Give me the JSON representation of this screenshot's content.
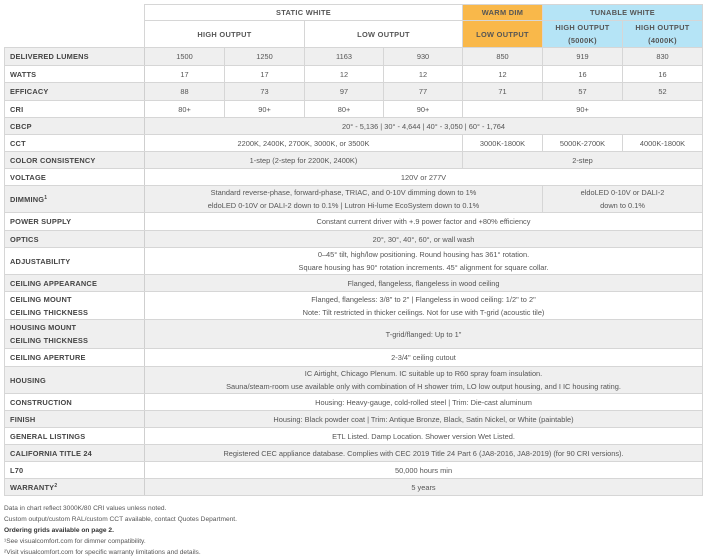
{
  "header": {
    "groups": [
      {
        "label": "STATIC WHITE",
        "span": 4,
        "color": ""
      },
      {
        "label": "WARM DIM",
        "span": 1,
        "color": "#f9b84a"
      },
      {
        "label": "TUNABLE WHITE",
        "span": 2,
        "color": "#b5e4f6"
      }
    ],
    "subgroups": [
      {
        "label": "HIGH OUTPUT",
        "span": 2,
        "color": ""
      },
      {
        "label": "LOW OUTPUT",
        "span": 2,
        "color": ""
      },
      {
        "label": "LOW OUTPUT",
        "span": 1,
        "color": "#f9b84a"
      },
      {
        "label": "HIGH OUTPUT\n(5000K)",
        "span": 1,
        "color": "#b5e4f6"
      },
      {
        "label": "HIGH OUTPUT\n(4000K)",
        "span": 1,
        "color": "#b5e4f6"
      }
    ]
  },
  "rows": [
    {
      "label": "DELIVERED LUMENS",
      "h": 18,
      "cells": [
        {
          "t": "1500",
          "s": 1
        },
        {
          "t": "1250",
          "s": 1
        },
        {
          "t": "1163",
          "s": 1
        },
        {
          "t": "930",
          "s": 1
        },
        {
          "t": "850",
          "s": 1
        },
        {
          "t": "919",
          "s": 1
        },
        {
          "t": "830",
          "s": 1
        }
      ]
    },
    {
      "label": "WATTS",
      "h": 17,
      "cells": [
        {
          "t": "17",
          "s": 1
        },
        {
          "t": "17",
          "s": 1
        },
        {
          "t": "12",
          "s": 1
        },
        {
          "t": "12",
          "s": 1
        },
        {
          "t": "12",
          "s": 1
        },
        {
          "t": "16",
          "s": 1
        },
        {
          "t": "16",
          "s": 1
        }
      ]
    },
    {
      "label": "EFFICACY",
      "h": 18,
      "cells": [
        {
          "t": "88",
          "s": 1
        },
        {
          "t": "73",
          "s": 1
        },
        {
          "t": "97",
          "s": 1
        },
        {
          "t": "77",
          "s": 1
        },
        {
          "t": "71",
          "s": 1
        },
        {
          "t": "57",
          "s": 1
        },
        {
          "t": "52",
          "s": 1
        }
      ]
    },
    {
      "label": "CRI",
      "h": 17,
      "cells": [
        {
          "t": "80+",
          "s": 1
        },
        {
          "t": "90+",
          "s": 1
        },
        {
          "t": "80+",
          "s": 1
        },
        {
          "t": "90+",
          "s": 1
        },
        {
          "t": "90+",
          "s": 3
        }
      ]
    },
    {
      "label": "CBCP",
      "h": 17,
      "cells": [
        {
          "t": "20° - 5,136  |  30° - 4,644  |  40° - 3,050  |  60° - 1,764",
          "s": 7
        }
      ]
    },
    {
      "label": "CCT",
      "h": 17,
      "cells": [
        {
          "t": "2200K, 2400K, 2700K, 3000K, or 3500K",
          "s": 4
        },
        {
          "t": "3000K-1800K",
          "s": 1
        },
        {
          "t": "5000K-2700K",
          "s": 1
        },
        {
          "t": "4000K-1800K",
          "s": 1
        }
      ]
    },
    {
      "label": "COLOR CONSISTENCY",
      "h": 17,
      "cells": [
        {
          "t": "1-step (2-step for 2200K, 2400K)",
          "s": 4
        },
        {
          "t": "2-step",
          "s": 3
        }
      ]
    },
    {
      "label": "VOLTAGE",
      "h": 17,
      "cells": [
        {
          "t": "120V or 277V",
          "s": 7
        }
      ]
    },
    {
      "label": "DIMMING",
      "sup": "1",
      "h": 27,
      "cells": [
        {
          "t": "Standard reverse-phase, forward-phase, TRIAC, and 0-10V dimming down to 1%\neldoLED 0-10V or DALI-2 down to 0.1%  |  Lutron Hi-lume EcoSystem down to 0.1%",
          "s": 5
        },
        {
          "t": "eldoLED 0-10V or DALI-2\ndown to 0.1%",
          "s": 2
        }
      ]
    },
    {
      "label": "POWER SUPPLY",
      "h": 18,
      "cells": [
        {
          "t": "Constant current driver with +.9 power factor and +80% efficiency",
          "s": 7
        }
      ]
    },
    {
      "label": "OPTICS",
      "h": 17,
      "cells": [
        {
          "t": "20°, 30°, 40°, 60°, or wall wash",
          "s": 7
        }
      ]
    },
    {
      "label": "ADJUSTABILITY",
      "h": 26,
      "cells": [
        {
          "t": "0–45° tilt, high/low positioning. Round housing has 361° rotation.\nSquare housing has 90° rotation increments. 45° alignment for square collar.",
          "s": 7
        }
      ]
    },
    {
      "label": "CEILING APPEARANCE",
      "h": 17,
      "cells": [
        {
          "t": "Flanged, flangeless, flangeless in wood ceiling",
          "s": 7
        }
      ]
    },
    {
      "label": "CEILING MOUNT\nCEILING THICKNESS",
      "h": 28,
      "cells": [
        {
          "t": "Flanged, flangeless: 3/8\" to 2\"  |  Flangeless in wood ceiling: 1/2\" to 2\"\nNote: Tilt restricted in thicker ceilings. Not for use with T-grid (acoustic tile)",
          "s": 7
        }
      ]
    },
    {
      "label": "HOUSING MOUNT\nCEILING THICKNESS",
      "h": 29,
      "cells": [
        {
          "t": "T-grid/flanged: Up to 1\"",
          "s": 7
        }
      ]
    },
    {
      "label": "CEILING APERTURE",
      "h": 18,
      "cells": [
        {
          "t": "2-3/4\" ceiling cutout",
          "s": 7
        }
      ]
    },
    {
      "label": "HOUSING",
      "h": 27,
      "cells": [
        {
          "t": "IC Airtight, Chicago Plenum. IC suitable up to R60 spray foam insulation.\nSauna/steam-room use available only with combination of H shower trim, LO low output housing, and I IC housing rating.",
          "s": 7
        }
      ]
    },
    {
      "label": "CONSTRUCTION",
      "h": 17,
      "cells": [
        {
          "t": "Housing: Heavy-gauge, cold-rolled steel | Trim: Die-cast aluminum",
          "s": 7
        }
      ]
    },
    {
      "label": "FINISH",
      "h": 17,
      "cells": [
        {
          "t": "Housing: Black powder coat | Trim: Antique Bronze, Black, Satin Nickel, or White (paintable)",
          "s": 7
        }
      ]
    },
    {
      "label": "GENERAL LISTINGS",
      "h": 17,
      "cells": [
        {
          "t": "ETL Listed. Damp Location. Shower version Wet Listed.",
          "s": 7
        }
      ]
    },
    {
      "label": "CALIFORNIA TITLE 24",
      "h": 17,
      "cells": [
        {
          "t": "Registered CEC appliance database. Complies with CEC 2019 Title 24 Part 6 (JA8-2016, JA8-2019) (for 90 CRI versions).",
          "s": 7
        }
      ]
    },
    {
      "label": "L70",
      "h": 17,
      "cells": [
        {
          "t": "50,000 hours min",
          "s": 7
        }
      ]
    },
    {
      "label": "WARRANTY",
      "sup": "2",
      "h": 17,
      "cells": [
        {
          "t": "5 years",
          "s": 7
        }
      ]
    }
  ],
  "notes": [
    {
      "text": "Data in chart reflect 3000K/80 CRI values unless noted.",
      "bold": false
    },
    {
      "text": "Custom output/custom RAL/custom CCT available, contact Quotes Department.",
      "bold": false
    },
    {
      "text": "Ordering grids available on page 2.",
      "bold": true
    },
    {
      "text": "¹See visualcomfort.com for dimmer compatibility.",
      "bold": false
    },
    {
      "text": "²Visit visualcomfort.com for specific warranty limitations and details.",
      "bold": false
    }
  ]
}
